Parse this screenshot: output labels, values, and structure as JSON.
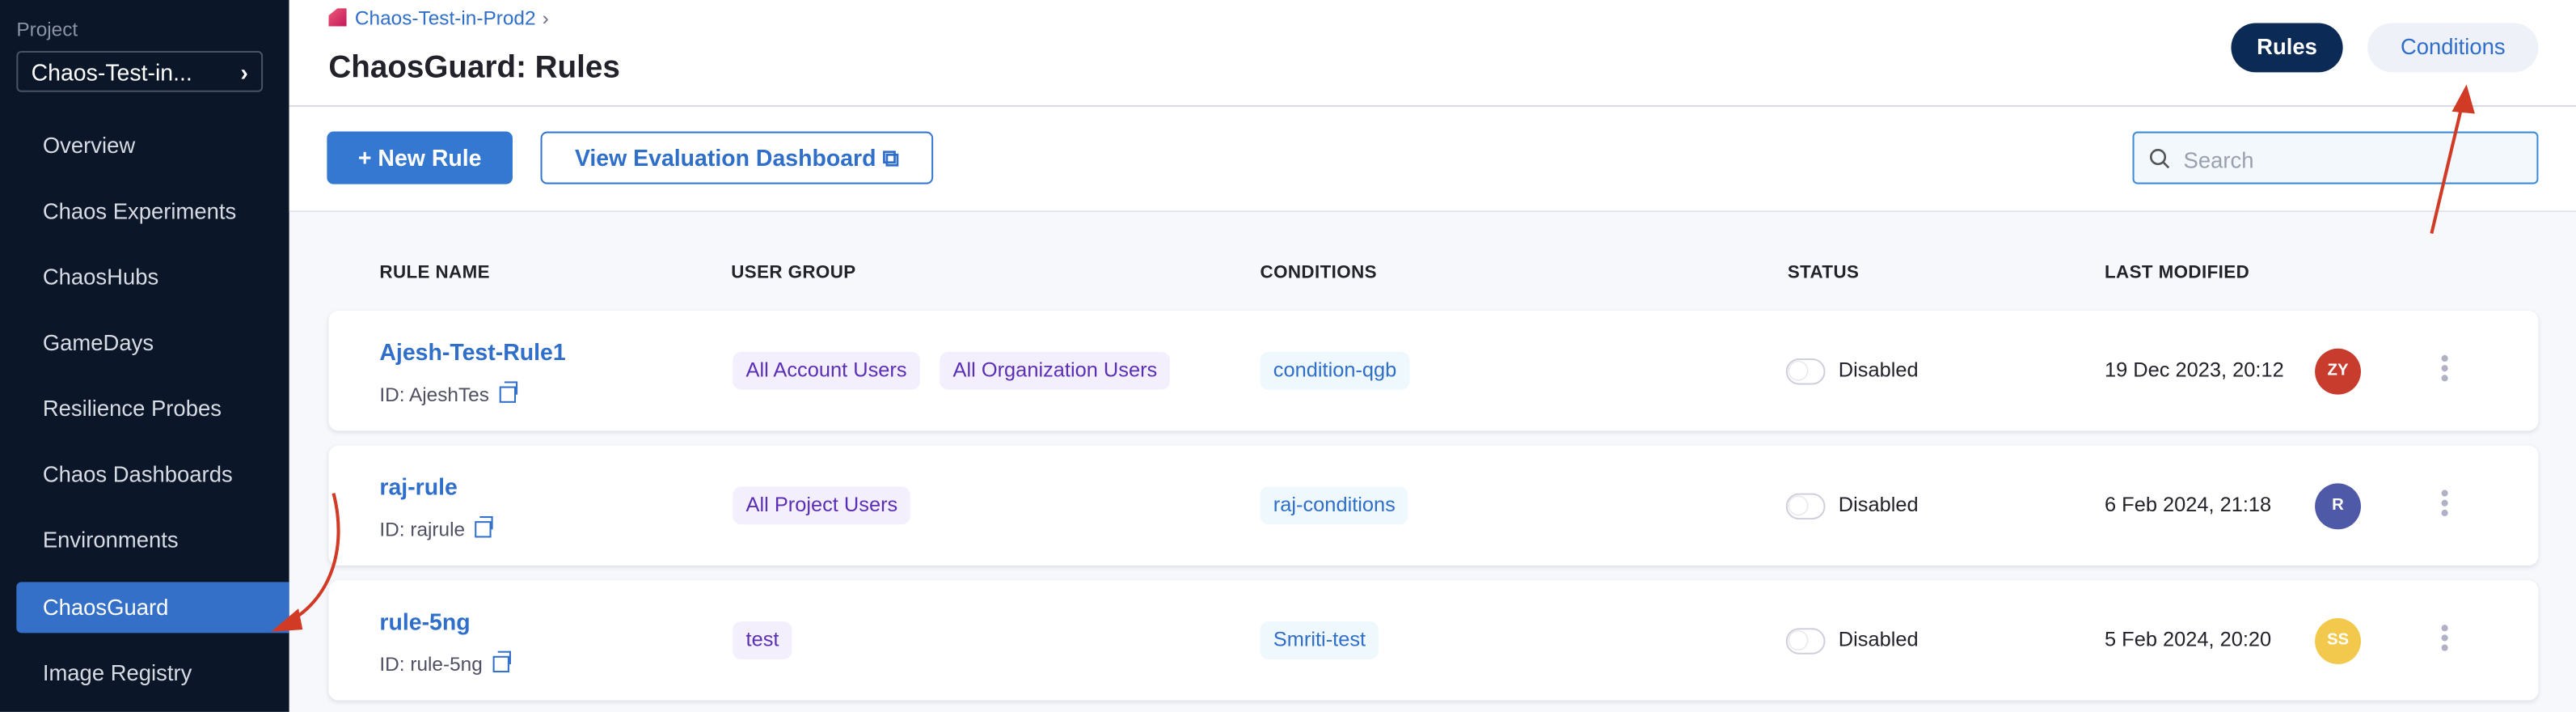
{
  "sidebar": {
    "project_label": "Project",
    "project_name": "Chaos-Test-in...",
    "items": [
      {
        "label": "Overview"
      },
      {
        "label": "Chaos Experiments"
      },
      {
        "label": "ChaosHubs"
      },
      {
        "label": "GameDays"
      },
      {
        "label": "Resilience Probes"
      },
      {
        "label": "Chaos Dashboards"
      },
      {
        "label": "Environments"
      },
      {
        "label": "ChaosGuard",
        "active": true
      },
      {
        "label": "Image Registry"
      }
    ]
  },
  "header": {
    "breadcrumb": "Chaos-Test-in-Prod2",
    "title": "ChaosGuard: Rules",
    "tabs": [
      {
        "label": "Rules",
        "active": true
      },
      {
        "label": "Conditions"
      }
    ]
  },
  "toolbar": {
    "new_rule": "New Rule",
    "view_dashboard": "View Evaluation Dashboard",
    "search_placeholder": "Search"
  },
  "table": {
    "columns": [
      "RULE NAME",
      "USER GROUP",
      "CONDITIONS",
      "STATUS",
      "LAST MODIFIED"
    ],
    "rows": [
      {
        "name": "Ajesh-Test-Rule1",
        "id": "ID: AjeshTes",
        "user_groups": [
          "All Account Users",
          "All Organization Users"
        ],
        "conditions": [
          "condition-qgb"
        ],
        "status": "Disabled",
        "modified": "19 Dec 2023, 20:12",
        "avatar": "ZY",
        "avatar_color": "#c83c2e"
      },
      {
        "name": "raj-rule",
        "id": "ID: rajrule",
        "user_groups": [
          "All Project Users"
        ],
        "conditions": [
          "raj-conditions"
        ],
        "status": "Disabled",
        "modified": "6 Feb 2024, 21:18",
        "avatar": "R",
        "avatar_color": "#4e5aa8"
      },
      {
        "name": "rule-5ng",
        "id": "ID: rule-5ng",
        "user_groups": [
          "test"
        ],
        "conditions": [
          "Smriti-test"
        ],
        "status": "Disabled",
        "modified": "5 Feb 2024, 20:20",
        "avatar": "SS",
        "avatar_color": "#f2c94c"
      }
    ]
  },
  "colors": {
    "accent": "#3478d1",
    "sidebar_bg": "#0b1628",
    "annotation_arrow": "#d13a25"
  }
}
